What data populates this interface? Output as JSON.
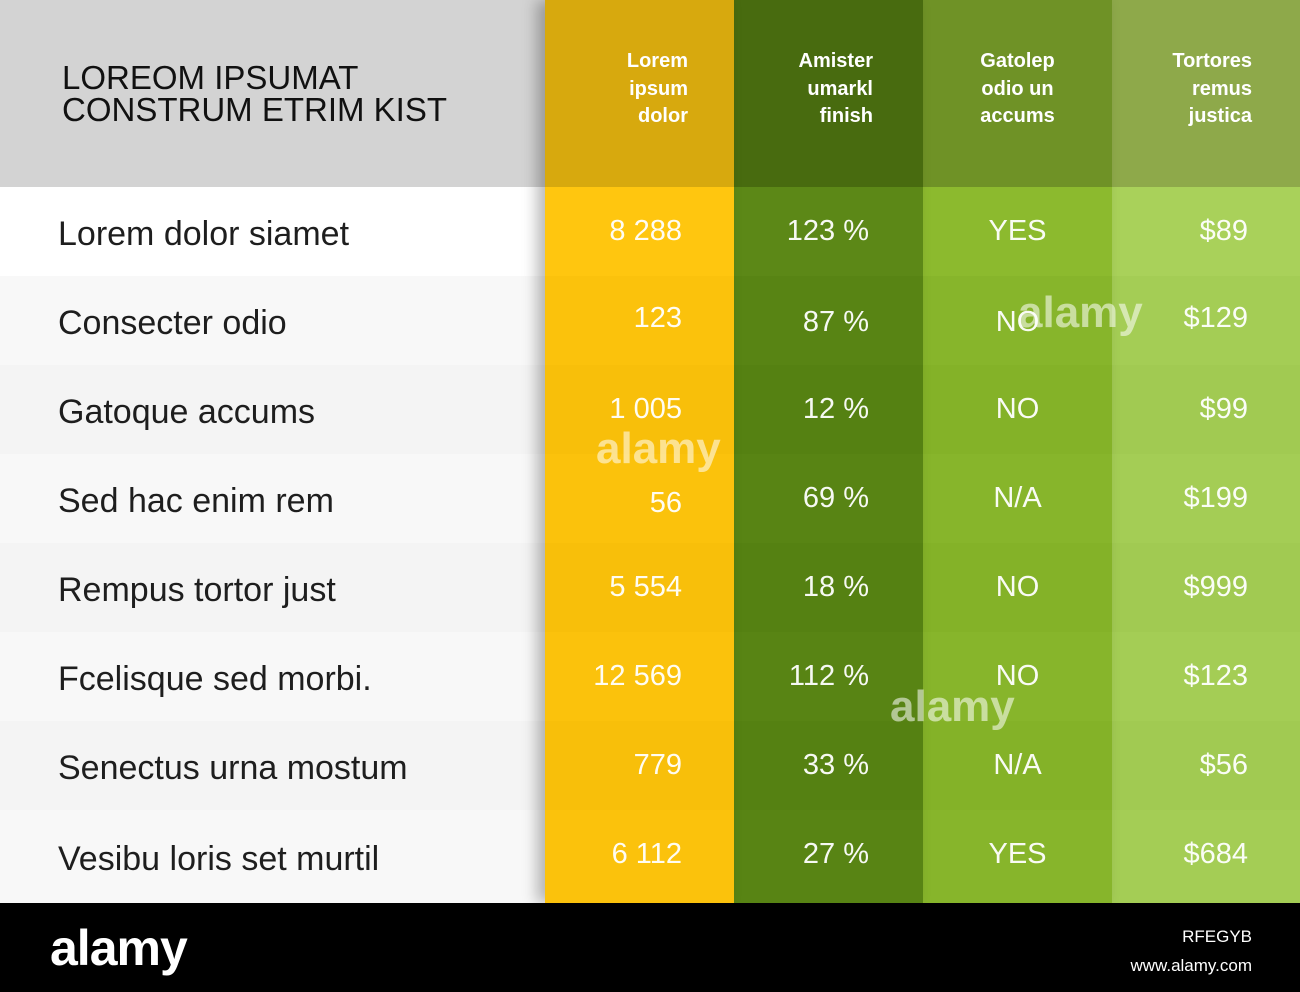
{
  "title": {
    "line1": "LOREOM IPSUMAT",
    "line2": "CONSTRUM ETRIM KIST"
  },
  "columns": [
    {
      "line1": "Lorem",
      "line2": "ipsum",
      "line3": "dolor",
      "color": "#ffc60f"
    },
    {
      "line1": "Amister",
      "line2": "umarkl",
      "line3": "finish",
      "color": "#5a8514"
    },
    {
      "line1": "Gatolep",
      "line2": "odio un",
      "line3": "accums",
      "color": "#8ab92c"
    },
    {
      "line1": "Tortores",
      "line2": "remus",
      "line3": "justica",
      "color": "#a9d05a"
    }
  ],
  "rows": [
    {
      "label": "Lorem dolor siamet",
      "c1": "8 288",
      "c2": "123 %",
      "c3": "YES",
      "c4": "$89"
    },
    {
      "label": "Consecter odio",
      "c1": "123",
      "c2": "87 %",
      "c3": "NO",
      "c4": "$129"
    },
    {
      "label": "Gatoque accums",
      "c1": "1 005",
      "c2": "12 %",
      "c3": "NO",
      "c4": "$99"
    },
    {
      "label": "Sed hac enim rem",
      "c1": "56",
      "c2": "69 %",
      "c3": "N/A",
      "c4": "$199"
    },
    {
      "label": "Rempus tortor just",
      "c1": "5 554",
      "c2": "18 %",
      "c3": "NO",
      "c4": "$999"
    },
    {
      "label": "Fcelisque sed morbi.",
      "c1": "12 569",
      "c2": "112 %",
      "c3": "NO",
      "c4": "$123"
    },
    {
      "label": "Senectus urna mostum",
      "c1": "779",
      "c2": "33 %",
      "c3": "N/A",
      "c4": "$56"
    },
    {
      "label": "Vesibu loris set murtil",
      "c1": "6 112",
      "c2": "27 %",
      "c3": "YES",
      "c4": "$684"
    }
  ],
  "watermark": "alamy",
  "footer": {
    "logo": "alamy",
    "image_id": "RFEGYB",
    "url": "www.alamy.com"
  }
}
